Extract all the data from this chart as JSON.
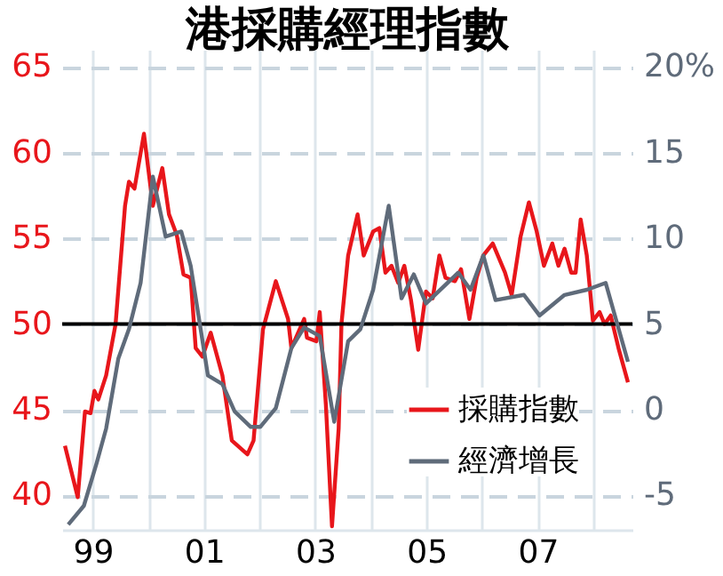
{
  "chart_data": {
    "type": "line",
    "title": "港採購經理指數",
    "xlim": [
      1998.45,
      2008.7
    ],
    "xticks": [
      {
        "value": 1999,
        "label": "99"
      },
      {
        "value": 2000,
        "label": null
      },
      {
        "value": 2001,
        "label": "01"
      },
      {
        "value": 2002,
        "label": null
      },
      {
        "value": 2003,
        "label": "03"
      },
      {
        "value": 2004,
        "label": null
      },
      {
        "value": 2005,
        "label": "05"
      },
      {
        "value": 2006,
        "label": null
      },
      {
        "value": 2007,
        "label": "07"
      },
      {
        "value": 2008,
        "label": null
      }
    ],
    "ylim": [
      38,
      66
    ],
    "yticks": [
      40,
      45,
      50,
      55,
      60,
      65
    ],
    "y2lim": [
      -7,
      21
    ],
    "y2ticks": [
      -5,
      0,
      5,
      10,
      15,
      {
        "value": 20,
        "label": "20%"
      }
    ],
    "grid": true,
    "legend": "bottom right",
    "line_style": "solid",
    "ref_lines": [
      {
        "axis": "y",
        "value": 50,
        "color": "#000000"
      }
    ],
    "series": [
      {
        "name": "採購指數",
        "color": "#e8161b",
        "x": [
          1998.5,
          1998.73,
          1998.86,
          1998.96,
          1999.03,
          1999.1,
          1999.24,
          1999.41,
          1999.58,
          1999.65,
          1999.75,
          1999.92,
          2000.08,
          2000.25,
          2000.37,
          2000.51,
          2000.63,
          2000.76,
          2000.85,
          2000.97,
          2001.12,
          2001.33,
          2001.5,
          2001.78,
          2001.89,
          2002.06,
          2002.29,
          2002.51,
          2002.57,
          2002.8,
          2002.85,
          2003.02,
          2003.08,
          2003.19,
          2003.3,
          2003.42,
          2003.47,
          2003.59,
          2003.76,
          2003.87,
          2004.04,
          2004.15,
          2004.26,
          2004.37,
          2004.49,
          2004.6,
          2004.72,
          2004.85,
          2004.99,
          2005.11,
          2005.23,
          2005.34,
          2005.51,
          2005.62,
          2005.77,
          2005.9,
          2006.02,
          2006.19,
          2006.41,
          2006.53,
          2006.69,
          2006.84,
          2006.98,
          2007.11,
          2007.26,
          2007.37,
          2007.48,
          2007.6,
          2007.68,
          2007.77,
          2007.88,
          2007.99,
          2008.11,
          2008.2,
          2008.31,
          2008.45,
          2008.62
        ],
        "values": [
          42.9,
          39.9,
          44.9,
          44.8,
          46.1,
          45.6,
          47,
          50,
          56.9,
          58.3,
          57.9,
          61.1,
          56.9,
          59.1,
          56.4,
          55.2,
          52.9,
          52.7,
          48.6,
          48.1,
          49.5,
          47,
          43.2,
          42.4,
          43.2,
          49.7,
          52.5,
          50.3,
          48.6,
          50.3,
          49.2,
          49,
          50.7,
          45.3,
          38.2,
          43.9,
          50,
          54,
          56.4,
          54,
          55.4,
          55.6,
          53,
          53.4,
          52.4,
          53.4,
          51.4,
          48.5,
          51.9,
          51.5,
          54,
          52.7,
          52.5,
          53.2,
          50.3,
          52.7,
          54,
          54.7,
          53,
          51.7,
          55.1,
          57.1,
          55.4,
          53.4,
          54.7,
          53.4,
          54.4,
          53,
          53,
          56.1,
          54,
          50.2,
          50.7,
          50,
          50.5,
          48.6,
          46.6
        ]
      },
      {
        "name": "經濟增長",
        "color": "#5f6b7a",
        "axis": "y2",
        "x": [
          1998.56,
          1998.84,
          1999.07,
          1999.24,
          1999.46,
          1999.65,
          1999.86,
          2000.08,
          2000.31,
          2000.59,
          2000.76,
          2001.07,
          2001.33,
          2001.55,
          2001.84,
          2002.01,
          2002.29,
          2002.57,
          2002.8,
          2003.08,
          2003.34,
          2003.59,
          2003.81,
          2004.04,
          2004.32,
          2004.55,
          2004.77,
          2004.99,
          2005.57,
          2005.79,
          2006.02,
          2006.24,
          2006.75,
          2007.03,
          2007.48,
          2007.88,
          2008.22,
          2008.62
        ],
        "values": [
          -6.7,
          -5.6,
          -3.1,
          -1.1,
          3,
          4.7,
          7.4,
          13.6,
          10.1,
          10.4,
          8.4,
          2,
          1.5,
          -0.1,
          -1,
          -1,
          0.1,
          3.6,
          4.8,
          4.3,
          -0.7,
          4,
          4.7,
          7,
          11.9,
          6.5,
          7.9,
          6.2,
          8,
          7,
          9,
          6.4,
          6.7,
          5.5,
          6.7,
          7,
          7.4,
          2.8
        ]
      }
    ]
  }
}
